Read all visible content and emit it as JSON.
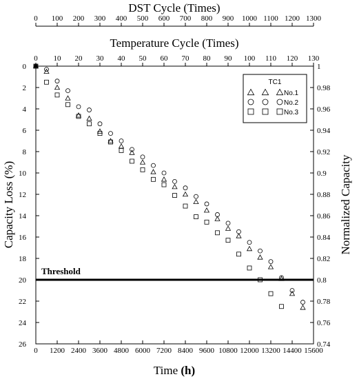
{
  "chart_data": {
    "type": "scatter",
    "xlabel": "Time",
    "xlabel_unit": "(h)",
    "x_ticks": [
      "0",
      "1200",
      "2400",
      "3600",
      "4800",
      "6000",
      "7200",
      "8400",
      "9600",
      "10800",
      "12000",
      "13200",
      "14400",
      "15600"
    ],
    "xlim": [
      0,
      15600
    ],
    "ylabel": "Capacity Loss (%)",
    "ylim": [
      0,
      26
    ],
    "y_reversed": true,
    "y_ticks": [
      "0",
      "2",
      "4",
      "6",
      "8",
      "10",
      "12",
      "14",
      "16",
      "18",
      "20",
      "22",
      "24",
      "26"
    ],
    "y2label": "Normalized Capacity",
    "y2_ticks": [
      "1",
      "0.98",
      "0.96",
      "0.94",
      "0.92",
      "0.9",
      "0.88",
      "0.86",
      "0.84",
      "0.82",
      "0.8",
      "0.78",
      "0.76",
      "0.74"
    ],
    "top_axis_1": {
      "label": "Temperature Cycle (Times)",
      "range": [
        0,
        130
      ],
      "ticks": [
        "0",
        "10",
        "20",
        "30",
        "40",
        "50",
        "60",
        "70",
        "80",
        "90",
        "100",
        "110",
        "120",
        "130"
      ]
    },
    "top_axis_2": {
      "label": "DST Cycle (Times)",
      "range": [
        0,
        1300
      ],
      "ticks": [
        "0",
        "100",
        "200",
        "300",
        "400",
        "500",
        "600",
        "700",
        "800",
        "900",
        "1000",
        "1100",
        "1200",
        "1300"
      ]
    },
    "threshold": {
      "label": "Threshold",
      "y": 20
    },
    "legend": {
      "title": "TC1",
      "position": "top-right"
    },
    "series": [
      {
        "name": "No.1",
        "marker": "triangle",
        "x": [
          0,
          600,
          1200,
          1800,
          2400,
          3000,
          3600,
          4200,
          4800,
          5400,
          6000,
          6600,
          7200,
          7800,
          8400,
          9000,
          9600,
          10200,
          10800,
          11400,
          12000,
          12600,
          13200,
          13800,
          14400,
          15000
        ],
        "y": [
          0,
          0.5,
          2.0,
          3.0,
          4.6,
          4.9,
          6.1,
          7.0,
          7.5,
          8.1,
          9.0,
          9.9,
          10.6,
          11.3,
          12.0,
          12.7,
          13.5,
          14.3,
          15.2,
          15.9,
          17.1,
          17.9,
          18.8,
          19.9,
          21.3,
          22.6
        ]
      },
      {
        "name": "No.2",
        "marker": "circle",
        "x": [
          0,
          600,
          1200,
          1800,
          2400,
          3000,
          3600,
          4200,
          4800,
          5400,
          6000,
          6600,
          7200,
          7800,
          8400,
          9000,
          9600,
          10200,
          10800,
          11400,
          12000,
          12600,
          13200,
          13800,
          14400,
          15000
        ],
        "y": [
          0,
          0.3,
          1.4,
          2.3,
          3.8,
          4.1,
          5.4,
          6.3,
          7.0,
          7.8,
          8.5,
          9.3,
          10.0,
          10.8,
          11.4,
          12.2,
          12.9,
          13.9,
          14.7,
          15.5,
          16.5,
          17.3,
          18.3,
          19.8,
          21.0,
          22.1
        ]
      },
      {
        "name": "No.3",
        "marker": "square",
        "x": [
          0,
          600,
          1200,
          1800,
          2400,
          3000,
          3600,
          4200,
          4800,
          5400,
          6000,
          6600,
          7200,
          7800,
          8400,
          9000,
          9600,
          10200,
          10800,
          11400,
          12000,
          12600,
          13200,
          13800
        ],
        "y": [
          0,
          1.5,
          2.7,
          3.6,
          4.7,
          5.4,
          6.3,
          7.1,
          7.9,
          8.9,
          9.7,
          10.6,
          11.1,
          12.1,
          13.1,
          14.1,
          14.6,
          15.6,
          16.3,
          17.6,
          18.9,
          20.0,
          21.3,
          22.5
        ]
      }
    ]
  }
}
